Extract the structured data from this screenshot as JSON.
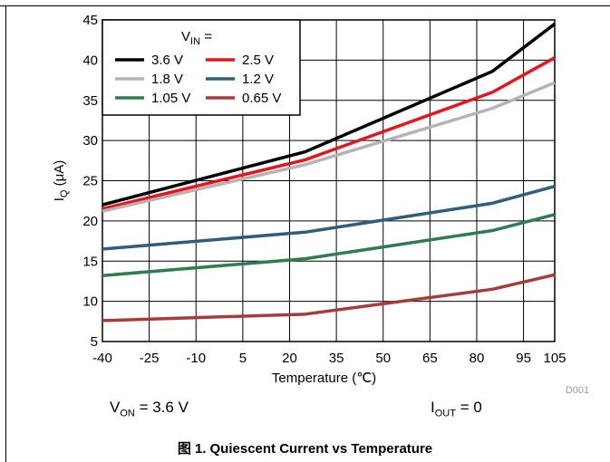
{
  "conditions": {
    "von": {
      "main": "V",
      "sub": "ON",
      "rest": " = 3.6 V"
    },
    "iout": {
      "main": "I",
      "sub": "OUT",
      "rest": " = 0"
    }
  },
  "caption": {
    "prefix": "图 1.",
    "text": "Quiescent Current vs Temperature"
  },
  "chart_data": {
    "type": "line",
    "title": "",
    "xlabel": "Temperature (℃)",
    "ylabel": {
      "main": "I",
      "sub": "Q",
      "rest": " (μA)"
    },
    "x_ticks": [
      "-40",
      "-25",
      "-10",
      "5",
      "20",
      "35",
      "50",
      "65",
      "80",
      "95",
      "105"
    ],
    "x_tick_values": [
      -40,
      -25,
      -10,
      5,
      20,
      35,
      50,
      65,
      80,
      95,
      105
    ],
    "y_ticks": [
      "5",
      "10",
      "15",
      "20",
      "25",
      "30",
      "35",
      "40",
      "45"
    ],
    "xlim": [
      -40,
      105
    ],
    "ylim": [
      5,
      45
    ],
    "grid": true,
    "watermark": "D001",
    "legend": {
      "title": {
        "main": "V",
        "sub": "IN",
        "rest": " ="
      },
      "placement": "top-left"
    },
    "x": [
      -40,
      25,
      85,
      105
    ],
    "series": [
      {
        "name": "3.6 V",
        "color": "#000000",
        "values": [
          22.0,
          28.6,
          38.6,
          44.5
        ]
      },
      {
        "name": "2.5 V",
        "color": "#e8141b",
        "values": [
          21.5,
          27.6,
          36.0,
          40.3
        ]
      },
      {
        "name": "1.8 V",
        "color": "#b4b4b4",
        "values": [
          21.2,
          27.0,
          34.0,
          37.2
        ]
      },
      {
        "name": "1.2 V",
        "color": "#2e5e7b",
        "values": [
          16.5,
          18.6,
          22.2,
          24.3
        ]
      },
      {
        "name": "1.05 V",
        "color": "#2e7d4f",
        "values": [
          13.2,
          15.3,
          18.8,
          20.8
        ]
      },
      {
        "name": "0.65 V",
        "color": "#a83a3a",
        "values": [
          7.6,
          8.4,
          11.5,
          13.3
        ]
      }
    ]
  }
}
